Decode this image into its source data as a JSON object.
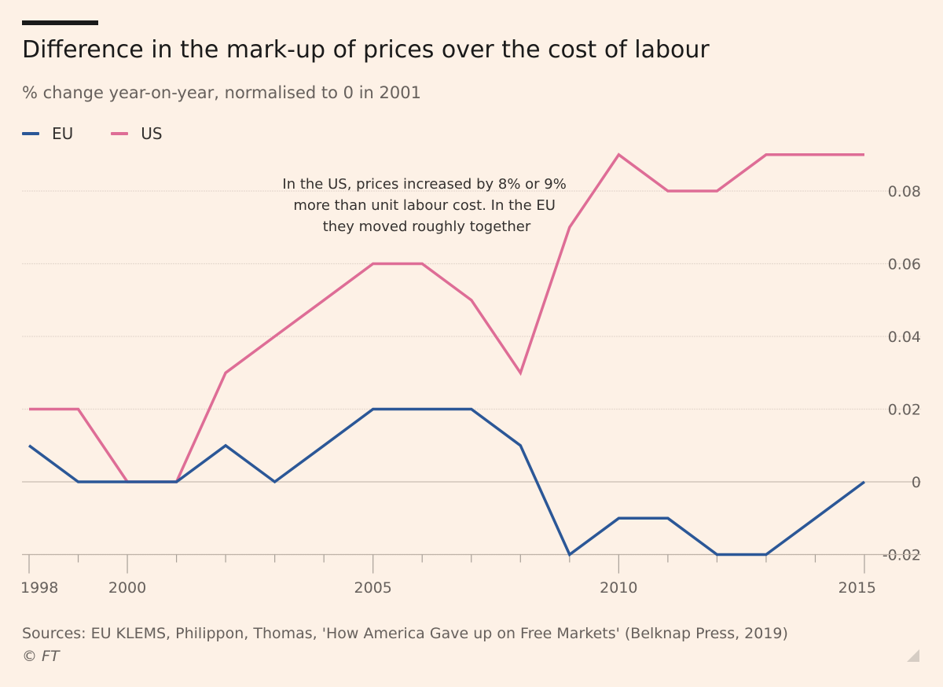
{
  "title": "Difference in the mark-up of prices over the cost of labour",
  "subtitle": "% change year-on-year, normalised to 0 in 2001",
  "legend": [
    {
      "name": "EU",
      "color": "#2b5797"
    },
    {
      "name": "US",
      "color": "#de6d96"
    }
  ],
  "annotation": [
    "In the US, prices increased by 8% or 9%",
    "more than unit labour cost. In the EU",
    "they moved roughly together"
  ],
  "source": "Sources: EU KLEMS, Philippon, Thomas, 'How America Gave up on Free Markets' (Belknap Press, 2019)",
  "copyright": "© FT",
  "chart_data": {
    "type": "line",
    "title": "Difference in the mark-up of prices over the cost of labour",
    "xlabel": "",
    "ylabel": "% change year-on-year, normalised to 0 in 2001",
    "x": [
      1998,
      1999,
      2000,
      2001,
      2002,
      2003,
      2004,
      2005,
      2006,
      2007,
      2008,
      2009,
      2010,
      2011,
      2012,
      2013,
      2014,
      2015
    ],
    "xlim": [
      1998,
      2015
    ],
    "ylim": [
      -0.02,
      0.09
    ],
    "x_ticks": [
      {
        "value": 1998,
        "label": "1998"
      },
      {
        "value": 2000,
        "label": "2000"
      },
      {
        "value": 2005,
        "label": "2005"
      },
      {
        "value": 2010,
        "label": "2010"
      },
      {
        "value": 2015,
        "label": "2015"
      }
    ],
    "y_ticks": [
      {
        "value": 0.08,
        "label": "0.08"
      },
      {
        "value": 0.06,
        "label": "0.06"
      },
      {
        "value": 0.04,
        "label": "0.04"
      },
      {
        "value": 0.02,
        "label": "0.02"
      },
      {
        "value": 0,
        "label": "0"
      },
      {
        "value": -0.02,
        "label": "-0.02"
      }
    ],
    "series": [
      {
        "name": "EU",
        "color": "#2b5797",
        "values": [
          0.01,
          0,
          0,
          0,
          0.01,
          0,
          0.01,
          0.02,
          0.02,
          0.02,
          0.01,
          -0.02,
          -0.01,
          -0.01,
          -0.02,
          -0.02,
          -0.01,
          0
        ]
      },
      {
        "name": "US",
        "color": "#de6d96",
        "values": [
          0.02,
          0.02,
          0,
          0,
          0.03,
          0.04,
          0.05,
          0.06,
          0.06,
          0.05,
          0.03,
          0.07,
          0.09,
          0.08,
          0.08,
          0.09,
          0.09,
          0.09
        ]
      }
    ],
    "grid": true,
    "legend_position": "top-left"
  }
}
